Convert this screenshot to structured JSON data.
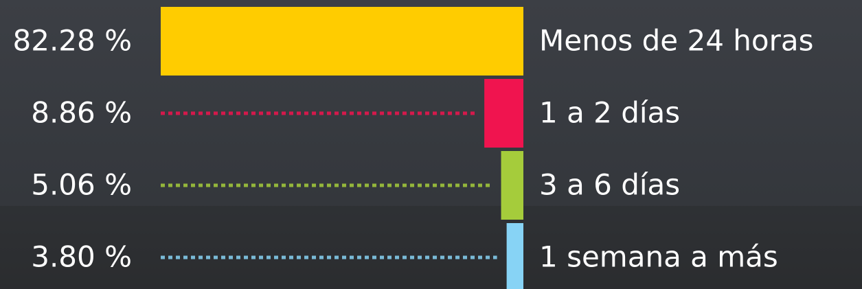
{
  "chart_data": {
    "type": "bar",
    "orientation": "horizontal",
    "categories": [
      "Menos de 24 horas",
      "1 a 2 días",
      "3 a 6 días",
      "1 semana a más"
    ],
    "values": [
      82.28,
      8.86,
      5.06,
      3.8
    ],
    "value_labels": [
      "82.28 %",
      "8.86 %",
      "5.06 %",
      "3.80 %"
    ],
    "colors": [
      "#ffcc00",
      "#f0144f",
      "#a5cc3b",
      "#87d3f5"
    ]
  }
}
